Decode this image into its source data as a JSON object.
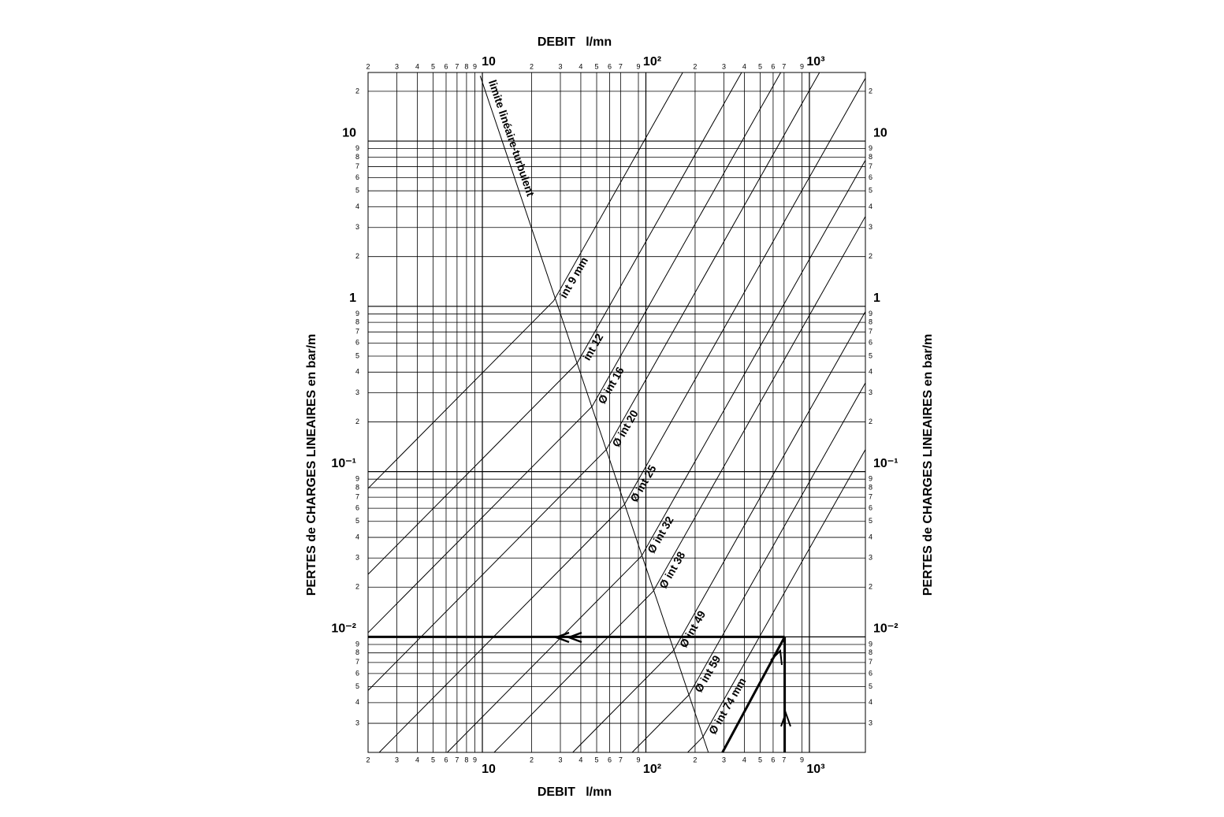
{
  "chart_data": {
    "type": "line",
    "x_label": "DEBIT   l/mn",
    "y_label": "PERTES de CHARGES LINEAIRES en bar/m",
    "log_x": true,
    "log_y": true,
    "grid": true,
    "color": "#000000",
    "xlim": [
      2,
      2200
    ],
    "ylim": [
      0.002,
      26
    ],
    "xticks": [
      2,
      3,
      4,
      5,
      6,
      7,
      8,
      9,
      10,
      {
        "value": 20,
        "label": "2"
      },
      {
        "value": 30,
        "label": "3"
      },
      {
        "value": 40,
        "label": "4"
      },
      {
        "value": 50,
        "label": "5"
      },
      {
        "value": 60,
        "label": "6"
      },
      {
        "value": 70,
        "label": "7"
      },
      {
        "value": 90,
        "label": "9"
      },
      {
        "value": 100,
        "label": "10²"
      },
      {
        "value": 200,
        "label": "2"
      },
      {
        "value": 300,
        "label": "3"
      },
      {
        "value": 400,
        "label": "4"
      },
      {
        "value": 500,
        "label": "5"
      },
      {
        "value": 600,
        "label": "6"
      },
      {
        "value": 700,
        "label": "7"
      },
      {
        "value": 900,
        "label": "9"
      },
      {
        "value": 1000,
        "label": "10³"
      }
    ],
    "yticks": [
      {
        "value": 20,
        "label": "2"
      },
      10,
      9,
      8,
      7,
      6,
      5,
      4,
      3,
      2,
      1,
      {
        "value": 0.9,
        "label": "9"
      },
      {
        "value": 0.8,
        "label": "8"
      },
      {
        "value": 0.7,
        "label": "7"
      },
      {
        "value": 0.6,
        "label": "6"
      },
      {
        "value": 0.5,
        "label": "5"
      },
      {
        "value": 0.4,
        "label": "4"
      },
      {
        "value": 0.3,
        "label": "3"
      },
      {
        "value": 0.2,
        "label": "2"
      },
      {
        "value": 0.1,
        "label": "10⁻¹"
      },
      {
        "value": 0.09,
        "label": "9"
      },
      {
        "value": 0.08,
        "label": "8"
      },
      {
        "value": 0.07,
        "label": "7"
      },
      {
        "value": 0.06,
        "label": "6"
      },
      {
        "value": 0.05,
        "label": "5"
      },
      {
        "value": 0.04,
        "label": "4"
      },
      {
        "value": 0.03,
        "label": "3"
      },
      {
        "value": 0.02,
        "label": "2"
      },
      {
        "value": 0.01,
        "label": "10⁻²"
      },
      {
        "value": 0.009,
        "label": "9"
      },
      {
        "value": 0.008,
        "label": "8"
      },
      {
        "value": 0.007,
        "label": "7"
      },
      {
        "value": 0.006,
        "label": "6"
      },
      {
        "value": 0.005,
        "label": "5"
      },
      {
        "value": 0.004,
        "label": "4"
      },
      {
        "value": 0.003,
        "label": "3"
      }
    ],
    "series": [
      {
        "name": "int 9  mm",
        "x": [
          2,
          27.3,
          168
        ],
        "values": [
          0.0791,
          1.08,
          26
        ]
      },
      {
        "name": "int 12",
        "x": [
          2,
          38.0,
          385
        ],
        "values": [
          0.0239,
          0.454,
          26
        ]
      },
      {
        "name": "Ø int 16",
        "x": [
          2,
          46.9,
          668
        ],
        "values": [
          0.0106,
          0.248,
          26
        ]
      },
      {
        "name": "Ø int 20",
        "x": [
          2,
          57.3,
          1153
        ],
        "values": [
          0.00474,
          0.136,
          26
        ]
      },
      {
        "name": "Ø int 25",
        "x": [
          2.34,
          73.8,
          2200
        ],
        "values": [
          0.002,
          0.0631,
          24.0
        ]
      },
      {
        "name": "Ø int 32",
        "x": [
          6.1,
          94.2,
          2200
        ],
        "values": [
          0.002,
          0.0309,
          7.66
        ]
      },
      {
        "name": "Ø int 38",
        "x": [
          11.8,
          111,
          2200
        ],
        "values": [
          0.002,
          0.0189,
          3.5
        ]
      },
      {
        "name": "Ø int 49",
        "x": [
          35.7,
          148,
          2200
        ],
        "values": [
          0.002,
          0.0083,
          0.929
        ]
      },
      {
        "name": "Ø int 59",
        "x": [
          82.4,
          183,
          2200
        ],
        "values": [
          0.002,
          0.00445,
          0.344
        ]
      },
      {
        "name": "Ø int 74 mm",
        "x": [
          180,
          223,
          2200
        ],
        "values": [
          0.002,
          0.00248,
          0.136
        ]
      }
    ],
    "limit": {
      "name": "limite linéaire-turbulent",
      "x": [
        9.7,
        241
      ],
      "values": [
        24.8,
        0.002
      ]
    },
    "example": {
      "x": [
        2,
        706,
        null,
        706,
        706,
        null,
        294,
        706
      ],
      "values": [
        0.01,
        0.01,
        null,
        0.002,
        0.01,
        null,
        0.002,
        0.01
      ]
    }
  }
}
